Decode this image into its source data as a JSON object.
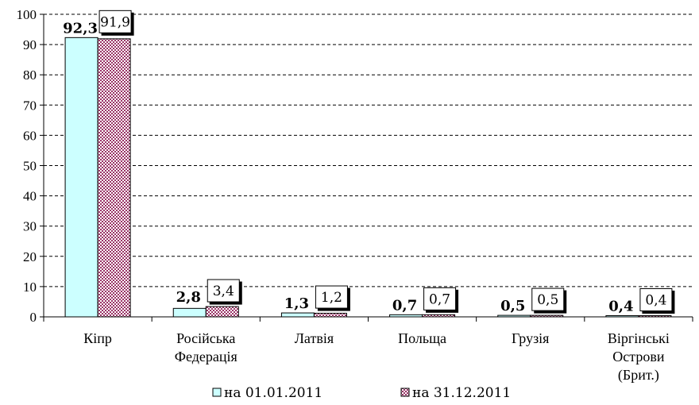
{
  "chart_data": {
    "type": "bar",
    "categories": [
      [
        "Кіпр"
      ],
      [
        "Російська",
        "Федерація"
      ],
      [
        "Латвія"
      ],
      [
        "Польща"
      ],
      [
        "Грузія"
      ],
      [
        "Віргінські",
        "Острови",
        "(Брит.)"
      ]
    ],
    "series": [
      {
        "name": "на 01.01.2011",
        "values": [
          92.3,
          2.8,
          1.3,
          0.7,
          0.5,
          0.4
        ],
        "labels": [
          "92,3",
          "2,8",
          "1,3",
          "0,7",
          "0,5",
          "0,4"
        ],
        "color": "#ccffff"
      },
      {
        "name": "на 31.12.2011",
        "values": [
          91.9,
          3.4,
          1.2,
          0.7,
          0.5,
          0.4
        ],
        "labels": [
          "91,9",
          "3,4",
          "1,2",
          "0,7",
          "0,5",
          "0,4"
        ],
        "color": "#993366",
        "pattern": "checker"
      }
    ],
    "yticks": [
      "0",
      "10",
      "20",
      "30",
      "40",
      "50",
      "60",
      "70",
      "80",
      "90",
      "100"
    ],
    "ylim": [
      0,
      100
    ],
    "grid": "dashed horizontal",
    "legend": "bottom"
  }
}
